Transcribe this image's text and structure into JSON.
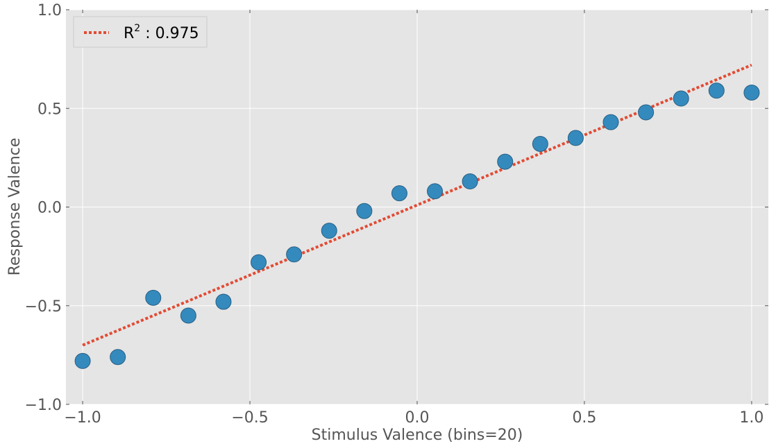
{
  "chart_data": {
    "type": "scatter",
    "title": "",
    "xlabel": "Stimulus Valence (bins=20)",
    "ylabel": "Response Valence",
    "xlim": [
      -1.05,
      1.05
    ],
    "ylim": [
      -1.0,
      1.0
    ],
    "xticks": [
      -1.0,
      -0.5,
      0.0,
      0.5,
      1.0
    ],
    "xtick_labels": [
      "−1.0",
      "−0.5",
      "0.0",
      "0.5",
      "1.0"
    ],
    "yticks": [
      -1.0,
      -0.5,
      0.0,
      0.5,
      1.0
    ],
    "ytick_labels": [
      "−1.0",
      "−0.5",
      "0.0",
      "0.5",
      "1.0"
    ],
    "grid": true,
    "legend_position": "top-left",
    "colors": {
      "points": "#348ABD",
      "fit_line": "#E24A33",
      "plot_background": "#E5E5E5",
      "grid": "#FFFFFF",
      "text": "#555555"
    },
    "series": [
      {
        "type": "scatter",
        "x": [
          -1.0,
          -0.895,
          -0.789,
          -0.684,
          -0.579,
          -0.474,
          -0.368,
          -0.263,
          -0.158,
          -0.053,
          0.053,
          0.158,
          0.263,
          0.368,
          0.474,
          0.579,
          0.684,
          0.789,
          0.895,
          1.0
        ],
        "y": [
          -0.78,
          -0.76,
          -0.46,
          -0.55,
          -0.48,
          -0.28,
          -0.24,
          -0.12,
          -0.02,
          0.07,
          0.08,
          0.13,
          0.23,
          0.32,
          0.35,
          0.43,
          0.48,
          0.55,
          0.59,
          0.58
        ]
      },
      {
        "type": "line",
        "name": "R² : 0.975",
        "style": "dotted",
        "x": [
          -1.0,
          1.0
        ],
        "y": [
          -0.7,
          0.72
        ]
      }
    ],
    "legend": {
      "label_main": "R",
      "label_sup": "2",
      "label_rest": " : 0.975"
    }
  }
}
